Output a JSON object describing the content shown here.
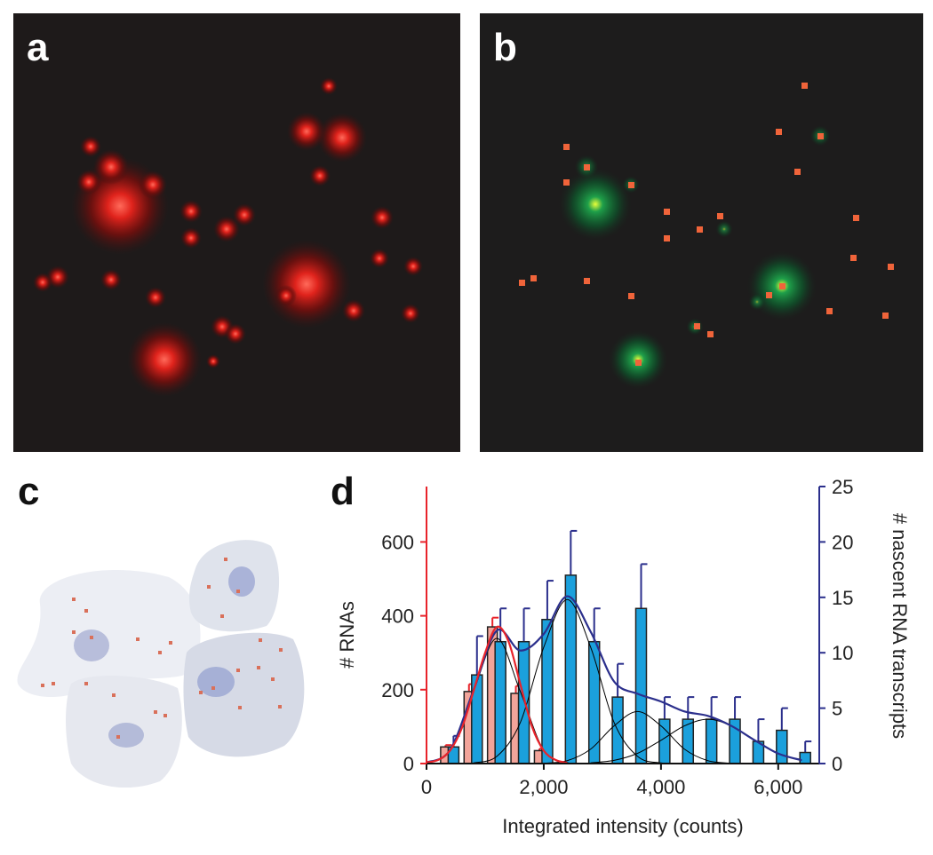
{
  "panel_labels": [
    "a",
    "b",
    "c",
    "d"
  ],
  "chart_data": {
    "type": "bar",
    "xlabel": "Integrated intensity (counts)",
    "ylabel": "# RNAs",
    "y2label": "# nascent RNA transcripts",
    "xlim": [
      0,
      6700
    ],
    "xticks": [
      0,
      {
        "value": 2000,
        "label": "2,000"
      },
      {
        "value": 4000,
        "label": "4,000"
      },
      {
        "value": 6000,
        "label": "6,000"
      }
    ],
    "ylim": [
      0,
      750
    ],
    "yticks": [
      0,
      200,
      400,
      600
    ],
    "y2lim": [
      0,
      25
    ],
    "y2ticks": [
      0,
      5,
      10,
      15,
      20,
      25
    ],
    "ycolor": "#e8232a",
    "y2color": "#2b2f8c",
    "series": [
      {
        "type": "bar",
        "color": "#f2a49a",
        "axis": "y",
        "x": [
          400,
          800,
          1200,
          1600,
          2000
        ],
        "values": [
          45,
          195,
          370,
          190,
          35
        ],
        "errors": [
          5,
          20,
          25,
          20,
          5
        ]
      },
      {
        "type": "bar",
        "color": "#1ba0dc",
        "axis": "y2",
        "x": [
          400,
          800,
          1200,
          1600,
          2000,
          2400,
          2800,
          3200,
          3600,
          4000,
          4400,
          4800,
          5200,
          5600,
          6000,
          6400
        ],
        "values": [
          1.5,
          8,
          11,
          11,
          13,
          17,
          11,
          6,
          14,
          4,
          4,
          4,
          4,
          2,
          3,
          1
        ],
        "errors": [
          1,
          3.5,
          3,
          3,
          3.5,
          4,
          3,
          3,
          4,
          2,
          2,
          2,
          2,
          2,
          2,
          1
        ]
      },
      {
        "type": "line",
        "color": "#000000",
        "axis": "y2",
        "x": [
          0,
          400,
          800,
          1200,
          1600,
          2000,
          2400,
          2800,
          3200
        ],
        "values": [
          0.08,
          1.2,
          6.5,
          11.3,
          6.5,
          1.2,
          0.08,
          0,
          0
        ]
      },
      {
        "type": "line",
        "color": "#000000",
        "axis": "y2",
        "x": [
          800,
          1200,
          1600,
          2000,
          2400,
          2800,
          3200,
          3600,
          4000,
          4400
        ],
        "values": [
          0.06,
          0.65,
          3.7,
          10.5,
          14.8,
          10.5,
          3.7,
          0.65,
          0.06,
          0
        ]
      },
      {
        "type": "line",
        "color": "#000000",
        "axis": "y2",
        "x": [
          2000,
          2400,
          2800,
          3200,
          3600,
          4000,
          4400,
          4800,
          5200
        ],
        "values": [
          0.03,
          0.26,
          1.3,
          3.4,
          4.7,
          3.4,
          1.3,
          0.26,
          0.03
        ]
      },
      {
        "type": "line",
        "color": "#000000",
        "axis": "y2",
        "x": [
          2800,
          3200,
          3600,
          4000,
          4400,
          4800,
          5200,
          5600,
          6000,
          6400
        ],
        "values": [
          0.07,
          0.29,
          0.92,
          2.1,
          3.4,
          4,
          3.4,
          2.1,
          0.92,
          0.29
        ]
      },
      {
        "type": "line",
        "color": "#2b2f8c",
        "axis": "y2",
        "x": [
          0,
          400,
          800,
          1200,
          1600,
          2000,
          2400,
          2800,
          3200,
          3600,
          4000,
          4400,
          4800,
          5200,
          5600,
          6000,
          6400
        ],
        "values": [
          0.1,
          1.2,
          6.6,
          12,
          10.2,
          11.7,
          15.1,
          11.9,
          7.4,
          6.3,
          5.6,
          4.7,
          4.3,
          3.4,
          2.1,
          0.9,
          0.3
        ]
      },
      {
        "type": "line",
        "color": "#e8232a",
        "axis": "y",
        "x": [
          0,
          200,
          400,
          600,
          800,
          1000,
          1200,
          1400,
          1600,
          1800,
          2000,
          2200,
          2400
        ],
        "values": [
          3,
          10,
          35,
          95,
          195,
          300,
          370,
          330,
          215,
          100,
          35,
          10,
          2
        ]
      }
    ]
  }
}
